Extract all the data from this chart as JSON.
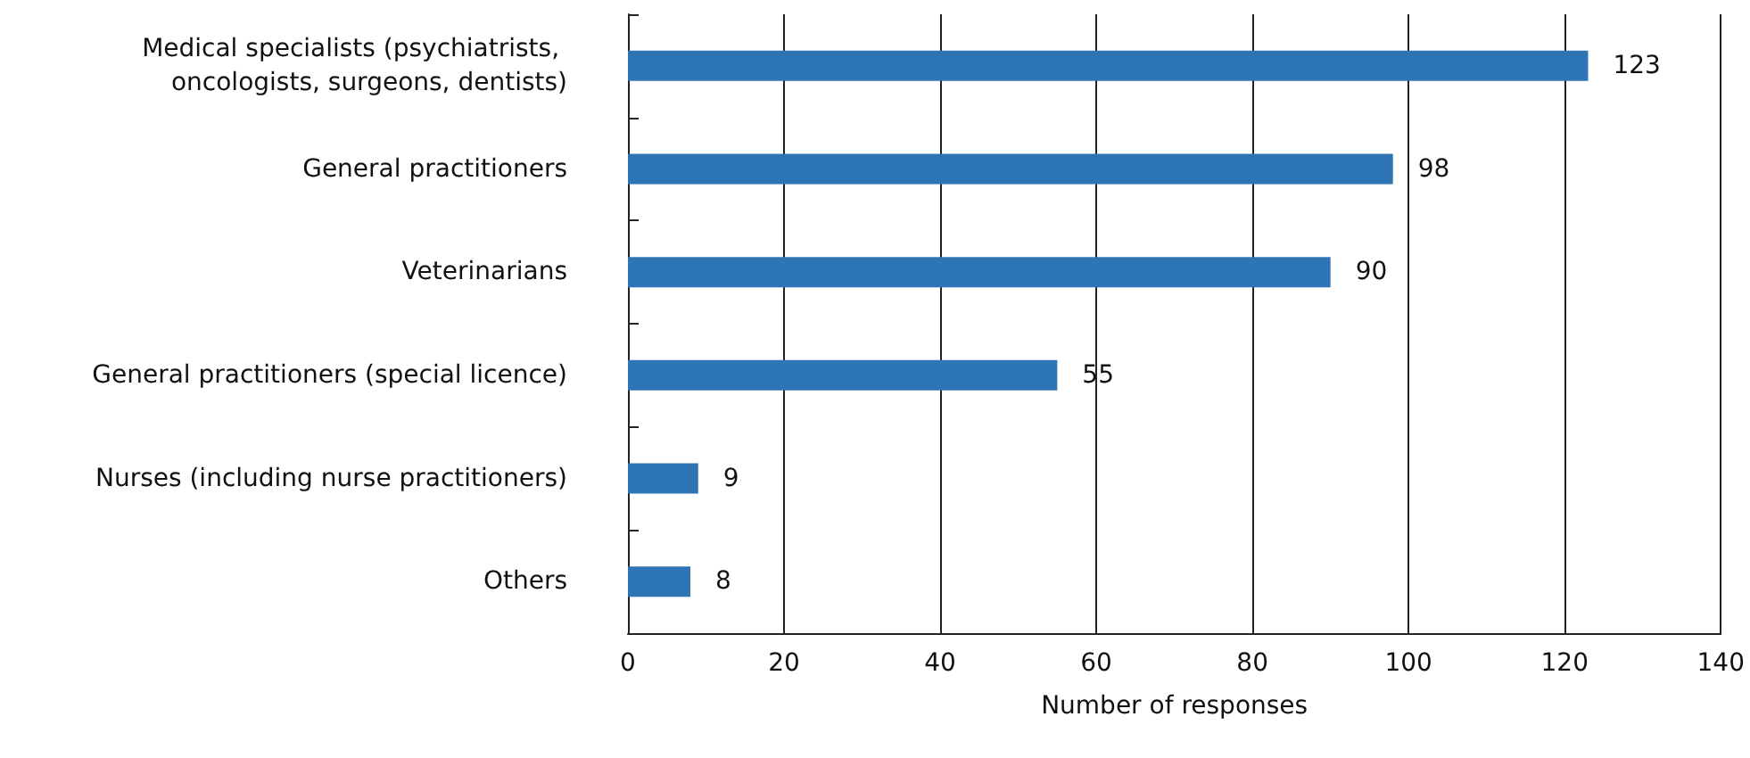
{
  "chart_data": {
    "type": "bar",
    "orientation": "horizontal",
    "xlabel": "Number of responses",
    "categories": [
      "Medical specialists (psychiatrists, oncologists, surgeons, dentists)",
      "General practitioners",
      "Veterinarians",
      "General practitioners (special licence)",
      "Nurses (including nurse practitioners)",
      "Others"
    ],
    "values": [
      123,
      98,
      90,
      55,
      9,
      8
    ],
    "color": "#2e75b6",
    "xlim": [
      0,
      140
    ],
    "xticks": [
      0,
      20,
      40,
      60,
      80,
      100,
      120,
      140
    ],
    "grid": "x",
    "data_labels": true
  }
}
